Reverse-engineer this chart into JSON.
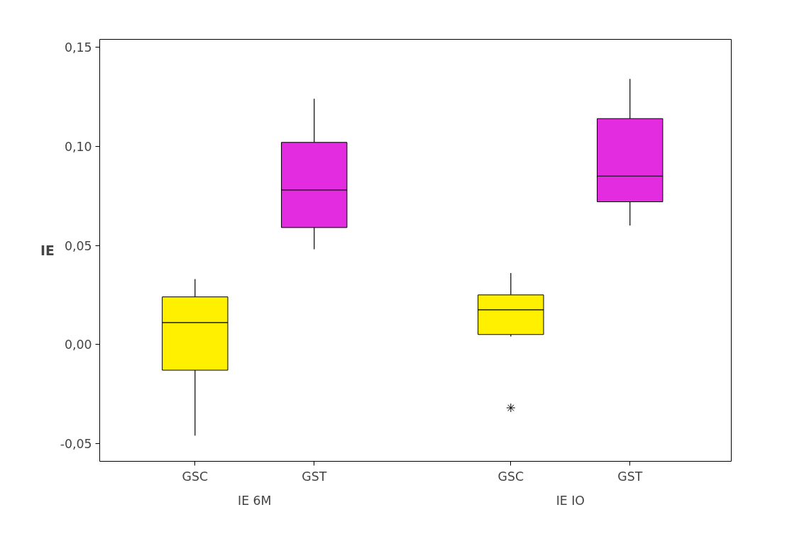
{
  "chart_data": {
    "type": "box",
    "ylabel": "IE",
    "categories": [
      "GSC",
      "GST",
      "GSC",
      "GST"
    ],
    "colors": [
      "#fff000",
      "#e32ce0",
      "#fff000",
      "#e32ce0"
    ],
    "boxes": [
      {
        "low": -0.046,
        "q1": -0.013,
        "median": 0.011,
        "q3": 0.024,
        "high": 0.033
      },
      {
        "low": 0.048,
        "q1": 0.059,
        "median": 0.078,
        "q3": 0.102,
        "high": 0.124
      },
      {
        "low": 0.004,
        "q1": 0.005,
        "median": 0.0175,
        "q3": 0.025,
        "high": 0.036,
        "outliers": [
          -0.032
        ]
      },
      {
        "low": 0.06,
        "q1": 0.072,
        "median": 0.085,
        "q3": 0.114,
        "high": 0.134
      }
    ],
    "annotations": [
      "IE 6M",
      "IE IO"
    ],
    "ylim": [
      -0.059,
      0.154
    ],
    "yticks": [
      {
        "value": -0.05,
        "label": "-0,05"
      },
      {
        "value": 0.0,
        "label": "0,00"
      },
      {
        "value": 0.05,
        "label": "0,05"
      },
      {
        "value": 0.1,
        "label": "0,10"
      },
      {
        "value": 0.15,
        "label": "0,15"
      }
    ],
    "grid": false
  }
}
